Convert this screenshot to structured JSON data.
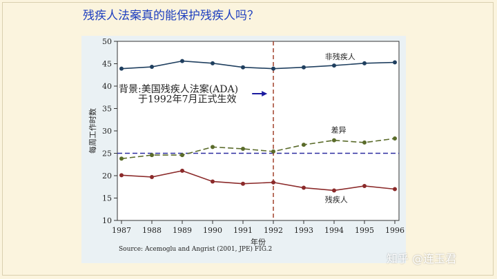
{
  "slide": {
    "title": "残疾人法案真的能保护残疾人吗？",
    "watermark": "知乎 @连玉君"
  },
  "chart_data": {
    "type": "line",
    "title": "",
    "xlabel": "年份",
    "ylabel": "每周工作时数",
    "x": [
      1987,
      1988,
      1989,
      1990,
      1991,
      1992,
      1993,
      1994,
      1995,
      1996
    ],
    "xlim": [
      1987,
      1996
    ],
    "ylim": [
      10,
      50
    ],
    "yticks": [
      10,
      15,
      20,
      25,
      30,
      35,
      40,
      45,
      50
    ],
    "grid": false,
    "series": [
      {
        "name": "非残疾人",
        "color": "#1f3f5f",
        "dash": "solid",
        "values": [
          43.9,
          44.3,
          45.6,
          45.1,
          44.2,
          43.9,
          44.2,
          44.6,
          45.1,
          45.3
        ]
      },
      {
        "name": "差异",
        "color": "#5a6b2a",
        "dash": "dashed",
        "values": [
          23.8,
          24.6,
          24.6,
          26.4,
          26.0,
          25.4,
          26.9,
          27.9,
          27.4,
          28.3
        ]
      },
      {
        "name": "残疾人",
        "color": "#8b2a2a",
        "dash": "solid",
        "values": [
          20.1,
          19.7,
          21.1,
          18.7,
          18.2,
          18.5,
          17.3,
          16.7,
          17.7,
          17.0
        ]
      }
    ],
    "reference_lines": {
      "horizontal_y": 25,
      "horizontal_color": "#2a2aa0",
      "vertical_x": 1992,
      "vertical_color": "#a0402a"
    },
    "annotation": {
      "line1": "背景:美国残疾人法案(ADA)",
      "line2": "于1992年7月正式生效",
      "arrow_color": "#1a1aa0"
    },
    "source": "Source: Acemoglu and Angrist (2001, JPE) FIG.2"
  }
}
